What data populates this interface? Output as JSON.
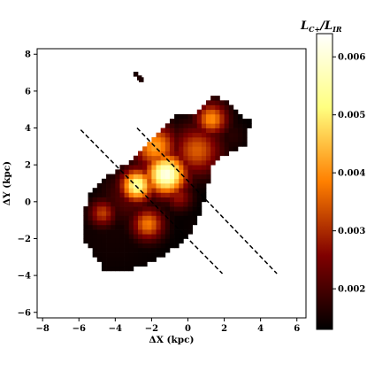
{
  "chart_data": {
    "type": "heatmap",
    "title": "",
    "xlabel": "ΔX (kpc)",
    "ylabel": "ΔY (kpc)",
    "xlim": [
      -8.3,
      6.5
    ],
    "ylim": [
      -6.3,
      8.3
    ],
    "x_ticks": [
      -8,
      -6,
      -4,
      -2,
      0,
      2,
      4,
      6
    ],
    "y_ticks": [
      -6,
      -4,
      -2,
      0,
      2,
      4,
      6,
      8
    ],
    "x_tick_labels": [
      "−8",
      "−6",
      "−4",
      "−2",
      "0",
      "2",
      "4",
      "6"
    ],
    "y_tick_labels": [
      "−6",
      "−4",
      "−2",
      "0",
      "2",
      "4",
      "6",
      "8"
    ],
    "grid": false,
    "colormap": "afmhot",
    "colorbar": {
      "label_main": "L",
      "label_main_sub": "C+",
      "label_sep": "/",
      "label_den": "L",
      "label_den_sub": "IR",
      "range": [
        0.0013,
        0.0064
      ],
      "ticks": [
        0.002,
        0.003,
        0.004,
        0.005,
        0.006
      ],
      "tick_labels": [
        "0.002",
        "0.003",
        "0.004",
        "0.005",
        "0.006"
      ]
    },
    "dashed_lines": [
      {
        "x": [
          -5.9,
          1.9
        ],
        "y": [
          3.9,
          -3.9
        ]
      },
      {
        "x": [
          -2.8,
          4.9
        ],
        "y": [
          4.0,
          -3.9
        ]
      }
    ],
    "blobs": [
      {
        "x": -4.0,
        "y": -1.5,
        "value": 0.0015,
        "sigma": 2.0
      },
      {
        "x": -3.2,
        "y": 0.3,
        "value": 0.0022,
        "sigma": 1.0
      },
      {
        "x": -1.2,
        "y": 1.5,
        "value": 0.0062,
        "sigma": 0.75
      },
      {
        "x": -2.8,
        "y": 0.9,
        "value": 0.0055,
        "sigma": 0.6
      },
      {
        "x": -1.8,
        "y": 3.0,
        "value": 0.0042,
        "sigma": 0.8
      },
      {
        "x": 0.5,
        "y": 2.8,
        "value": 0.0035,
        "sigma": 0.9
      },
      {
        "x": 1.3,
        "y": 4.5,
        "value": 0.004,
        "sigma": 0.6
      },
      {
        "x": 2.4,
        "y": 3.6,
        "value": 0.0017,
        "sigma": 0.6
      },
      {
        "x": -4.7,
        "y": -0.6,
        "value": 0.0032,
        "sigma": 0.5
      },
      {
        "x": -2.2,
        "y": -1.2,
        "value": 0.0038,
        "sigma": 0.6
      },
      {
        "x": -0.5,
        "y": 0.3,
        "value": 0.0028,
        "sigma": 0.5
      },
      {
        "x": 0.3,
        "y": -1.3,
        "value": 0.0014,
        "sigma": 0.7
      }
    ],
    "emission_region": {
      "outline": [
        [
          -5.8,
          -1.0
        ],
        [
          -5.4,
          0.5
        ],
        [
          -4.6,
          1.3
        ],
        [
          -3.6,
          1.9
        ],
        [
          -2.6,
          2.8
        ],
        [
          -1.8,
          3.6
        ],
        [
          -0.8,
          4.6
        ],
        [
          0.5,
          4.9
        ],
        [
          1.2,
          5.7
        ],
        [
          2.0,
          5.6
        ],
        [
          3.5,
          4.3
        ],
        [
          3.1,
          3.0
        ],
        [
          2.0,
          2.5
        ],
        [
          1.3,
          1.8
        ],
        [
          1.0,
          0.3
        ],
        [
          0.5,
          -1.2
        ],
        [
          -0.5,
          -2.4
        ],
        [
          -2.0,
          -3.3
        ],
        [
          -3.5,
          -3.8
        ],
        [
          -4.6,
          -3.8
        ],
        [
          -5.2,
          -2.8
        ],
        [
          -5.8,
          -2.0
        ]
      ],
      "extra_pixels": [
        [
          -3.0,
          6.8
        ],
        [
          -2.8,
          6.6
        ],
        [
          -2.7,
          6.5
        ]
      ]
    }
  }
}
